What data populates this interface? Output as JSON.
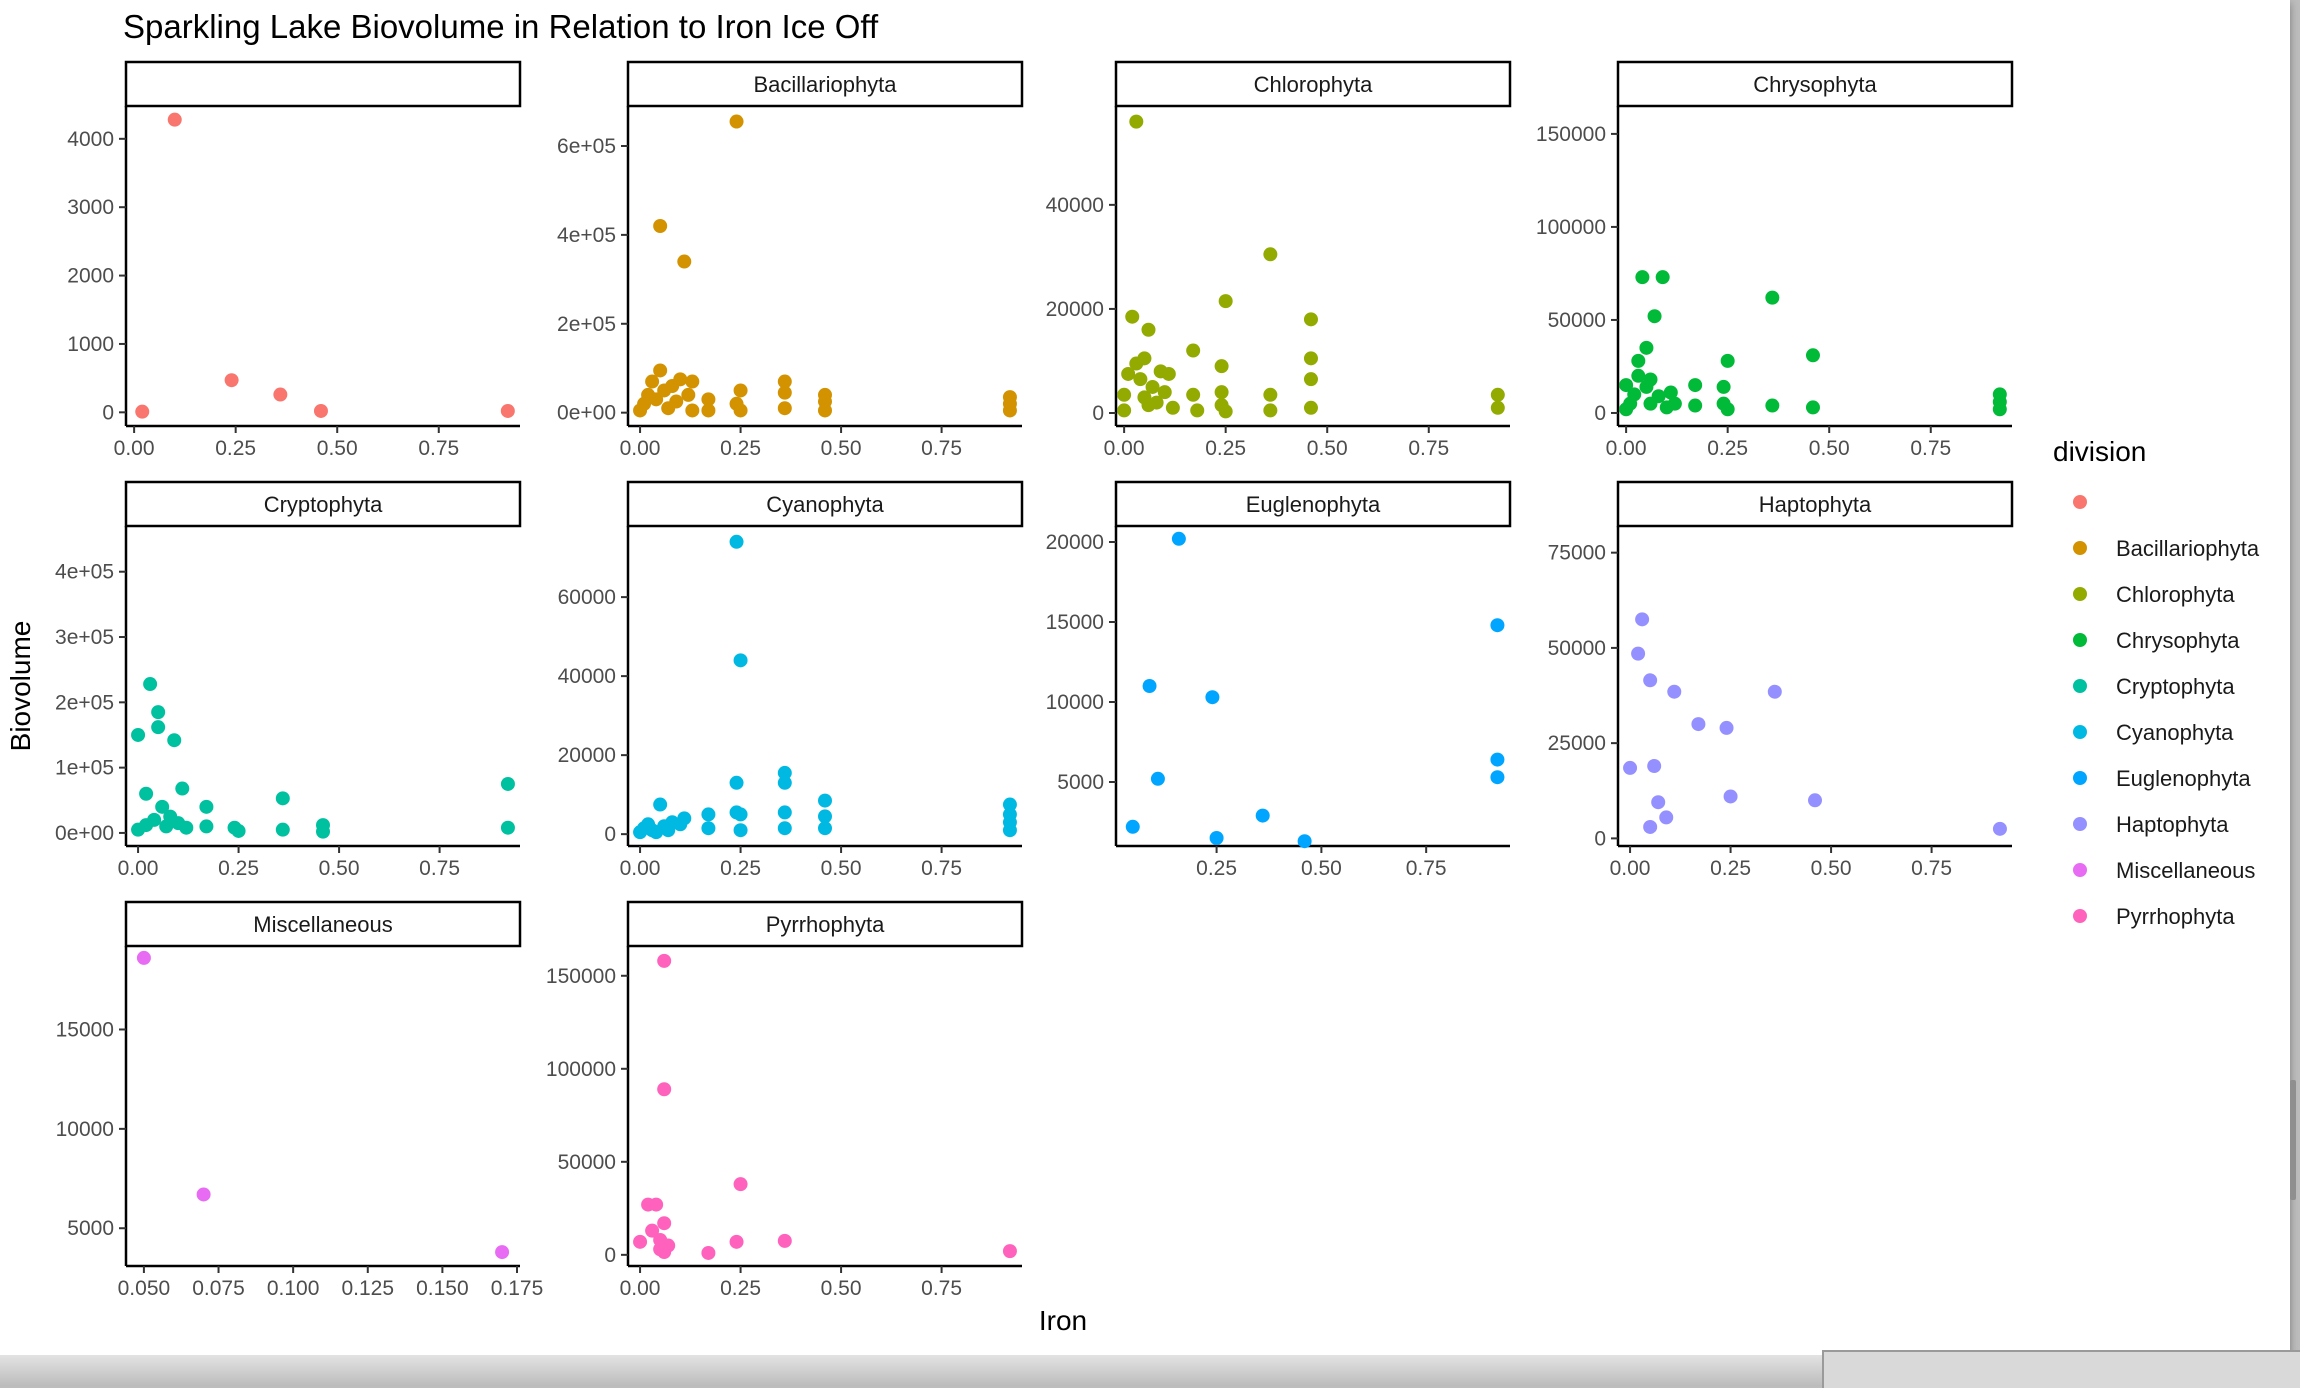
{
  "colors": {
    "(blank)": "#F8766D",
    "Bacillariophyta": "#D39200",
    "Chlorophyta": "#93AA00",
    "Chrysophyta": "#00BA38",
    "Cryptophyta": "#00C19F",
    "Cyanophyta": "#00B9E3",
    "Euglenophyta": "#00A5FF",
    "Haptophyta": "#9590FF",
    "Miscellaneous": "#E76BF3",
    "Pyrrhophyta": "#FF62BC"
  },
  "chart_data": {
    "type": "scatter",
    "title": "Sparkling Lake Biovolume in Relation to Iron Ice Off",
    "xlabel": "Iron",
    "ylabel": "Biovolume",
    "legend": {
      "title": "division",
      "position": "right",
      "entries": [
        "",
        "Bacillariophyta",
        "Chlorophyta",
        "Chrysophyta",
        "Cryptophyta",
        "Cyanophyta",
        "Euglenophyta",
        "Haptophyta",
        "Miscellaneous",
        "Pyrrhophyta"
      ]
    },
    "grid": false,
    "facets": [
      {
        "label": "",
        "color_key": "(blank)",
        "xlim": [
          -0.02,
          0.95
        ],
        "ylim": [
          -200,
          4480
        ],
        "xticks": [
          0,
          0.25,
          0.5,
          0.75
        ],
        "xtick_labels": [
          "0.00",
          "0.25",
          "0.50",
          "0.75"
        ],
        "yticks": [
          0,
          1000,
          2000,
          3000,
          4000
        ],
        "ytick_labels": [
          "0",
          "1000",
          "2000",
          "3000",
          "4000"
        ],
        "points": [
          [
            0.02,
            10
          ],
          [
            0.1,
            4280
          ],
          [
            0.24,
            470
          ],
          [
            0.36,
            260
          ],
          [
            0.46,
            20
          ],
          [
            0.92,
            20
          ]
        ]
      },
      {
        "label": "Bacillariophyta",
        "color_key": "Bacillariophyta",
        "xlim": [
          -0.03,
          0.95
        ],
        "ylim": [
          -30000,
          690000
        ],
        "xticks": [
          0,
          0.25,
          0.5,
          0.75
        ],
        "xtick_labels": [
          "0.00",
          "0.25",
          "0.50",
          "0.75"
        ],
        "yticks": [
          0,
          200000,
          400000,
          600000
        ],
        "ytick_labels": [
          "0e+00",
          "2e+05",
          "4e+05",
          "6e+05"
        ],
        "points": [
          [
            0.0,
            5000
          ],
          [
            0.01,
            20000
          ],
          [
            0.02,
            40000
          ],
          [
            0.03,
            70000
          ],
          [
            0.04,
            30000
          ],
          [
            0.05,
            95000
          ],
          [
            0.05,
            420000
          ],
          [
            0.06,
            50000
          ],
          [
            0.07,
            10000
          ],
          [
            0.08,
            60000
          ],
          [
            0.09,
            25000
          ],
          [
            0.1,
            75000
          ],
          [
            0.11,
            340000
          ],
          [
            0.12,
            40000
          ],
          [
            0.13,
            70000
          ],
          [
            0.13,
            5000
          ],
          [
            0.17,
            30000
          ],
          [
            0.17,
            5000
          ],
          [
            0.24,
            20000
          ],
          [
            0.24,
            655000
          ],
          [
            0.25,
            50000
          ],
          [
            0.25,
            5000
          ],
          [
            0.36,
            70000
          ],
          [
            0.36,
            45000
          ],
          [
            0.36,
            10000
          ],
          [
            0.46,
            40000
          ],
          [
            0.46,
            25000
          ],
          [
            0.46,
            5000
          ],
          [
            0.92,
            35000
          ],
          [
            0.92,
            20000
          ],
          [
            0.92,
            5000
          ]
        ]
      },
      {
        "label": "Chlorophyta",
        "color_key": "Chlorophyta",
        "xlim": [
          -0.02,
          0.95
        ],
        "ylim": [
          -2500,
          59000
        ],
        "xticks": [
          0,
          0.25,
          0.5,
          0.75
        ],
        "xtick_labels": [
          "0.00",
          "0.25",
          "0.50",
          "0.75"
        ],
        "yticks": [
          0,
          20000,
          40000
        ],
        "ytick_labels": [
          "0",
          "20000",
          "40000"
        ],
        "points": [
          [
            0.0,
            500
          ],
          [
            0.0,
            3500
          ],
          [
            0.01,
            7500
          ],
          [
            0.02,
            18500
          ],
          [
            0.03,
            9500
          ],
          [
            0.03,
            56000
          ],
          [
            0.04,
            6500
          ],
          [
            0.05,
            3000
          ],
          [
            0.05,
            10500
          ],
          [
            0.06,
            16000
          ],
          [
            0.06,
            1500
          ],
          [
            0.07,
            5000
          ],
          [
            0.08,
            2000
          ],
          [
            0.09,
            8000
          ],
          [
            0.1,
            4000
          ],
          [
            0.11,
            7500
          ],
          [
            0.12,
            1000
          ],
          [
            0.17,
            12000
          ],
          [
            0.17,
            3500
          ],
          [
            0.18,
            500
          ],
          [
            0.24,
            9000
          ],
          [
            0.24,
            4000
          ],
          [
            0.24,
            1500
          ],
          [
            0.25,
            21500
          ],
          [
            0.25,
            300
          ],
          [
            0.36,
            30500
          ],
          [
            0.36,
            3500
          ],
          [
            0.36,
            500
          ],
          [
            0.46,
            18000
          ],
          [
            0.46,
            10500
          ],
          [
            0.46,
            6500
          ],
          [
            0.46,
            1000
          ],
          [
            0.92,
            3500
          ],
          [
            0.92,
            1000
          ]
        ]
      },
      {
        "label": "Chrysophyta",
        "color_key": "Chrysophyta",
        "xlim": [
          -0.02,
          0.95
        ],
        "ylim": [
          -7000,
          165000
        ],
        "xticks": [
          0,
          0.25,
          0.5,
          0.75
        ],
        "xtick_labels": [
          "0.00",
          "0.25",
          "0.50",
          "0.75"
        ],
        "yticks": [
          0,
          50000,
          100000,
          150000
        ],
        "ytick_labels": [
          "0",
          "50000",
          "100000",
          "150000"
        ],
        "points": [
          [
            0.0,
            15000
          ],
          [
            0.0,
            2000
          ],
          [
            0.01,
            5000
          ],
          [
            0.02,
            10000
          ],
          [
            0.03,
            28000
          ],
          [
            0.03,
            20000
          ],
          [
            0.04,
            73000
          ],
          [
            0.05,
            14000
          ],
          [
            0.05,
            35000
          ],
          [
            0.06,
            5000
          ],
          [
            0.06,
            18000
          ],
          [
            0.07,
            52000
          ],
          [
            0.08,
            9000
          ],
          [
            0.09,
            73000
          ],
          [
            0.1,
            3000
          ],
          [
            0.11,
            11000
          ],
          [
            0.12,
            5000
          ],
          [
            0.17,
            15000
          ],
          [
            0.17,
            4000
          ],
          [
            0.24,
            14000
          ],
          [
            0.24,
            5000
          ],
          [
            0.25,
            28000
          ],
          [
            0.25,
            2000
          ],
          [
            0.36,
            62000
          ],
          [
            0.36,
            4000
          ],
          [
            0.46,
            31000
          ],
          [
            0.46,
            3000
          ],
          [
            0.92,
            10000
          ],
          [
            0.92,
            6000
          ],
          [
            0.92,
            2000
          ]
        ]
      },
      {
        "label": "Cryptophyta",
        "color_key": "Cryptophyta",
        "xlim": [
          -0.03,
          0.95
        ],
        "ylim": [
          -20000,
          470000
        ],
        "xticks": [
          0,
          0.25,
          0.5,
          0.75
        ],
        "xtick_labels": [
          "0.00",
          "0.25",
          "0.50",
          "0.75"
        ],
        "yticks": [
          0,
          100000,
          200000,
          300000,
          400000
        ],
        "ytick_labels": [
          "0e+00",
          "1e+05",
          "2e+05",
          "3e+05",
          "4e+05"
        ],
        "points": [
          [
            0.0,
            150000
          ],
          [
            0.0,
            5000
          ],
          [
            0.02,
            60000
          ],
          [
            0.02,
            12000
          ],
          [
            0.03,
            228000
          ],
          [
            0.04,
            20000
          ],
          [
            0.05,
            185000
          ],
          [
            0.05,
            162000
          ],
          [
            0.06,
            40000
          ],
          [
            0.07,
            10000
          ],
          [
            0.08,
            25000
          ],
          [
            0.09,
            142000
          ],
          [
            0.1,
            15000
          ],
          [
            0.11,
            68000
          ],
          [
            0.12,
            8000
          ],
          [
            0.17,
            40000
          ],
          [
            0.17,
            10000
          ],
          [
            0.24,
            8000
          ],
          [
            0.25,
            3000
          ],
          [
            0.36,
            53000
          ],
          [
            0.36,
            5000
          ],
          [
            0.46,
            12000
          ],
          [
            0.46,
            2000
          ],
          [
            0.92,
            75000
          ],
          [
            0.92,
            8000
          ]
        ]
      },
      {
        "label": "Cyanophyta",
        "color_key": "Cyanophyta",
        "xlim": [
          -0.03,
          0.95
        ],
        "ylim": [
          -3000,
          78000
        ],
        "xticks": [
          0,
          0.25,
          0.5,
          0.75
        ],
        "xtick_labels": [
          "0.00",
          "0.25",
          "0.50",
          "0.75"
        ],
        "yticks": [
          0,
          20000,
          40000,
          60000
        ],
        "ytick_labels": [
          "0",
          "20000",
          "40000",
          "60000"
        ],
        "points": [
          [
            0.0,
            500
          ],
          [
            0.01,
            1500
          ],
          [
            0.02,
            2500
          ],
          [
            0.03,
            1000
          ],
          [
            0.04,
            500
          ],
          [
            0.05,
            7500
          ],
          [
            0.06,
            2000
          ],
          [
            0.07,
            1000
          ],
          [
            0.08,
            3000
          ],
          [
            0.1,
            2500
          ],
          [
            0.11,
            4000
          ],
          [
            0.17,
            5000
          ],
          [
            0.17,
            1500
          ],
          [
            0.24,
            74000
          ],
          [
            0.24,
            13000
          ],
          [
            0.24,
            5500
          ],
          [
            0.25,
            44000
          ],
          [
            0.25,
            5000
          ],
          [
            0.25,
            1000
          ],
          [
            0.36,
            15500
          ],
          [
            0.36,
            13000
          ],
          [
            0.36,
            5500
          ],
          [
            0.36,
            1500
          ],
          [
            0.46,
            8500
          ],
          [
            0.46,
            4500
          ],
          [
            0.46,
            1500
          ],
          [
            0.92,
            7500
          ],
          [
            0.92,
            5000
          ],
          [
            0.92,
            3000
          ],
          [
            0.92,
            1000
          ]
        ]
      },
      {
        "label": "Euglenophyta",
        "color_key": "Euglenophyta",
        "xlim": [
          0.01,
          0.95
        ],
        "ylim": [
          1000,
          21000
        ],
        "xticks": [
          0.25,
          0.5,
          0.75
        ],
        "xtick_labels": [
          "0.25",
          "0.50",
          "0.75"
        ],
        "yticks": [
          5000,
          10000,
          15000,
          20000
        ],
        "ytick_labels": [
          "5000",
          "10000",
          "15000",
          "20000"
        ],
        "points": [
          [
            0.05,
            2200
          ],
          [
            0.09,
            11000
          ],
          [
            0.11,
            5200
          ],
          [
            0.16,
            20200
          ],
          [
            0.24,
            10300
          ],
          [
            0.25,
            1500
          ],
          [
            0.36,
            2900
          ],
          [
            0.46,
            1300
          ],
          [
            0.92,
            14800
          ],
          [
            0.92,
            6400
          ],
          [
            0.92,
            5300
          ]
        ]
      },
      {
        "label": "Haptophyta",
        "color_key": "Haptophyta",
        "xlim": [
          -0.03,
          0.95
        ],
        "ylim": [
          -2000,
          82000
        ],
        "xticks": [
          0,
          0.25,
          0.5,
          0.75
        ],
        "xtick_labels": [
          "0.00",
          "0.25",
          "0.50",
          "0.75"
        ],
        "yticks": [
          0,
          25000,
          50000,
          75000
        ],
        "ytick_labels": [
          "0",
          "25000",
          "50000",
          "75000"
        ],
        "points": [
          [
            0.0,
            18500
          ],
          [
            0.02,
            48500
          ],
          [
            0.03,
            57500
          ],
          [
            0.05,
            41500
          ],
          [
            0.05,
            3000
          ],
          [
            0.06,
            19000
          ],
          [
            0.07,
            9500
          ],
          [
            0.09,
            5500
          ],
          [
            0.11,
            38500
          ],
          [
            0.17,
            30000
          ],
          [
            0.24,
            29000
          ],
          [
            0.25,
            11000
          ],
          [
            0.36,
            38500
          ],
          [
            0.46,
            10000
          ],
          [
            0.92,
            2500
          ]
        ]
      },
      {
        "label": "Miscellaneous",
        "color_key": "Miscellaneous",
        "xlim": [
          0.044,
          0.176
        ],
        "ylim": [
          3100,
          19200
        ],
        "xticks": [
          0.05,
          0.075,
          0.1,
          0.125,
          0.15,
          0.175
        ],
        "xtick_labels": [
          "0.050",
          "0.075",
          "0.100",
          "0.125",
          "0.150",
          "0.175"
        ],
        "yticks": [
          5000,
          10000,
          15000
        ],
        "ytick_labels": [
          "5000",
          "10000",
          "15000"
        ],
        "points": [
          [
            0.05,
            18600
          ],
          [
            0.07,
            6700
          ],
          [
            0.17,
            3800
          ]
        ]
      },
      {
        "label": "Pyrrhophyta",
        "color_key": "Pyrrhophyta",
        "xlim": [
          -0.03,
          0.95
        ],
        "ylim": [
          -6000,
          166000
        ],
        "xticks": [
          0,
          0.25,
          0.5,
          0.75
        ],
        "xtick_labels": [
          "0.00",
          "0.25",
          "0.50",
          "0.75"
        ],
        "yticks": [
          0,
          50000,
          100000,
          150000
        ],
        "ytick_labels": [
          "0",
          "50000",
          "100000",
          "150000"
        ],
        "points": [
          [
            0.0,
            7000
          ],
          [
            0.02,
            27000
          ],
          [
            0.03,
            13000
          ],
          [
            0.04,
            27000
          ],
          [
            0.05,
            8000
          ],
          [
            0.05,
            3000
          ],
          [
            0.06,
            158000
          ],
          [
            0.06,
            89000
          ],
          [
            0.06,
            17000
          ],
          [
            0.06,
            1500
          ],
          [
            0.07,
            5000
          ],
          [
            0.17,
            1000
          ],
          [
            0.24,
            7000
          ],
          [
            0.25,
            38000
          ],
          [
            0.36,
            7500
          ],
          [
            0.92,
            2000
          ]
        ]
      }
    ]
  }
}
